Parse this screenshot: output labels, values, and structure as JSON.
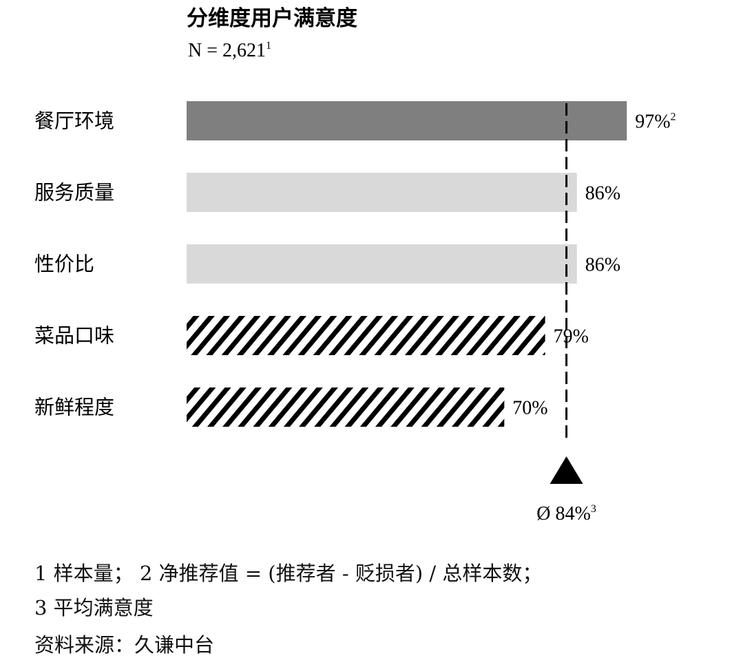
{
  "chart_data": {
    "type": "bar",
    "orientation": "horizontal",
    "title": "分维度用户满意度",
    "subtitle": "N = 2,621",
    "subtitle_footnote": "1",
    "categories": [
      "餐厅环境",
      "服务质量",
      "性价比",
      "菜品口味",
      "新鲜程度"
    ],
    "values": [
      97,
      86,
      86,
      79,
      70
    ],
    "value_labels": [
      "97%",
      "86%",
      "86%",
      "79%",
      "70%"
    ],
    "value_label_footnotes": [
      "2",
      "",
      "",
      "",
      ""
    ],
    "bar_styles": [
      "dark",
      "light",
      "light",
      "hatched",
      "hatched"
    ],
    "colors": {
      "dark": "#7f7f7f",
      "light": "#d9d9d9",
      "hatch": "#000000"
    },
    "unit": "%",
    "xlim": [
      0,
      100
    ],
    "reference_line": {
      "value": 84,
      "label": "Ø 84%",
      "footnote": "3",
      "style": "dashed",
      "marker": "triangle-up"
    },
    "grid": false,
    "legend": "none"
  },
  "footnotes": {
    "line1": "1 样本量； 2 净推荐值 = (推荐者 - 贬损者) / 总样本数；",
    "line2": "3 平均满意度",
    "source": "资料来源：久谦中台"
  }
}
